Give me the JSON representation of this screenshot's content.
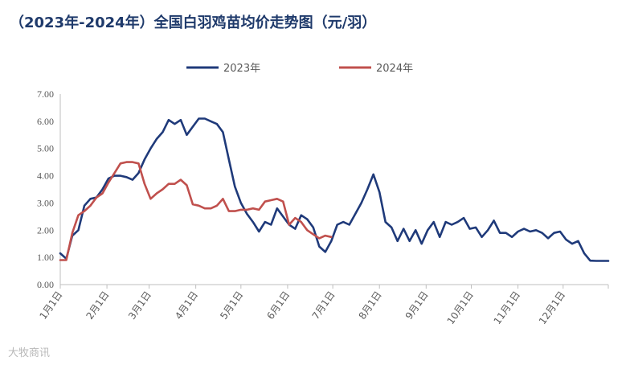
{
  "title": "（2023年-2024年）全国白羽鸡苗均价走势图（元/羽）",
  "watermark": "大牧商讯",
  "colors": {
    "s2023": "#1f3a7a",
    "s2024": "#c0504d",
    "axis": "#bfbfbf",
    "text": "#595959"
  },
  "chart_data": {
    "type": "line",
    "title": "（2023年-2024年）全国白羽鸡苗均价走势图（元/羽）",
    "ylim": [
      0,
      7
    ],
    "yticks": [
      "0.00",
      "1.00",
      "2.00",
      "3.00",
      "4.00",
      "5.00",
      "6.00",
      "7.00"
    ],
    "xlabels": [
      "1月1日",
      "2月1日",
      "3月1日",
      "4月1日",
      "5月1日",
      "6月1日",
      "7月1日",
      "8月1日",
      "9月1日",
      "10月1日",
      "11月1日",
      "12月1日"
    ],
    "grid": false,
    "legend": "top-center",
    "series": [
      {
        "name": "2023年",
        "x": [
          1,
          5,
          9,
          13,
          17,
          21,
          25,
          29,
          33,
          37,
          41,
          45,
          49,
          53,
          57,
          61,
          65,
          69,
          73,
          77,
          81,
          85,
          89,
          93,
          97,
          101,
          105,
          109,
          113,
          117,
          121,
          125,
          129,
          133,
          137,
          141,
          145,
          149,
          153,
          157,
          161,
          165,
          169,
          173,
          177,
          181,
          185,
          189,
          193,
          197,
          201,
          205,
          209,
          213,
          217,
          221,
          225,
          229,
          233,
          237,
          241,
          245,
          249,
          253,
          257,
          261,
          265,
          269,
          273,
          277,
          281,
          285,
          289,
          293,
          297,
          301,
          305,
          309,
          313,
          317,
          321,
          325,
          329,
          333,
          337,
          341,
          345,
          349,
          353,
          357,
          361,
          365
        ],
        "y": [
          1.15,
          0.95,
          1.8,
          2.0,
          2.9,
          3.15,
          3.2,
          3.5,
          3.9,
          4.0,
          4.0,
          3.95,
          3.85,
          4.1,
          4.6,
          5.0,
          5.35,
          5.6,
          6.05,
          5.9,
          6.05,
          5.5,
          5.8,
          6.1,
          6.1,
          6.0,
          5.9,
          5.6,
          4.6,
          3.6,
          3.0,
          2.6,
          2.3,
          1.95,
          2.3,
          2.2,
          2.8,
          2.5,
          2.2,
          2.05,
          2.55,
          2.4,
          2.1,
          1.4,
          1.2,
          1.6,
          2.2,
          2.3,
          2.2,
          2.6,
          3.0,
          3.5,
          4.05,
          3.4,
          2.3,
          2.1,
          1.6,
          2.05,
          1.6,
          2.0,
          1.5,
          2.0,
          2.3,
          1.75,
          2.3,
          2.2,
          2.3,
          2.45,
          2.05,
          2.1,
          1.75,
          2.0,
          2.35,
          1.9,
          1.9,
          1.75,
          1.95,
          2.05,
          1.95,
          2.0,
          1.9,
          1.7,
          1.9,
          1.95,
          1.65,
          1.5,
          1.6,
          1.15,
          0.88,
          0.87,
          0.87,
          0.87
        ]
      },
      {
        "name": "2024年",
        "x": [
          1,
          5,
          9,
          13,
          17,
          21,
          25,
          29,
          33,
          37,
          41,
          45,
          49,
          53,
          57,
          61,
          65,
          69,
          73,
          77,
          81,
          85,
          89,
          93,
          97,
          101,
          105,
          109,
          113,
          117,
          121,
          125,
          129,
          133,
          137,
          141,
          145,
          149,
          153,
          157,
          161,
          165,
          169,
          173,
          177,
          181
        ],
        "y": [
          0.9,
          0.9,
          1.9,
          2.55,
          2.7,
          2.9,
          3.2,
          3.35,
          3.75,
          4.1,
          4.45,
          4.5,
          4.5,
          4.45,
          3.7,
          3.15,
          3.35,
          3.5,
          3.7,
          3.7,
          3.85,
          3.65,
          2.95,
          2.9,
          2.8,
          2.8,
          2.9,
          3.15,
          2.7,
          2.7,
          2.75,
          2.75,
          2.8,
          2.75,
          3.05,
          3.1,
          3.15,
          3.05,
          2.2,
          2.45,
          2.3,
          2.0,
          1.85,
          1.7,
          1.8,
          1.75
        ]
      }
    ]
  }
}
